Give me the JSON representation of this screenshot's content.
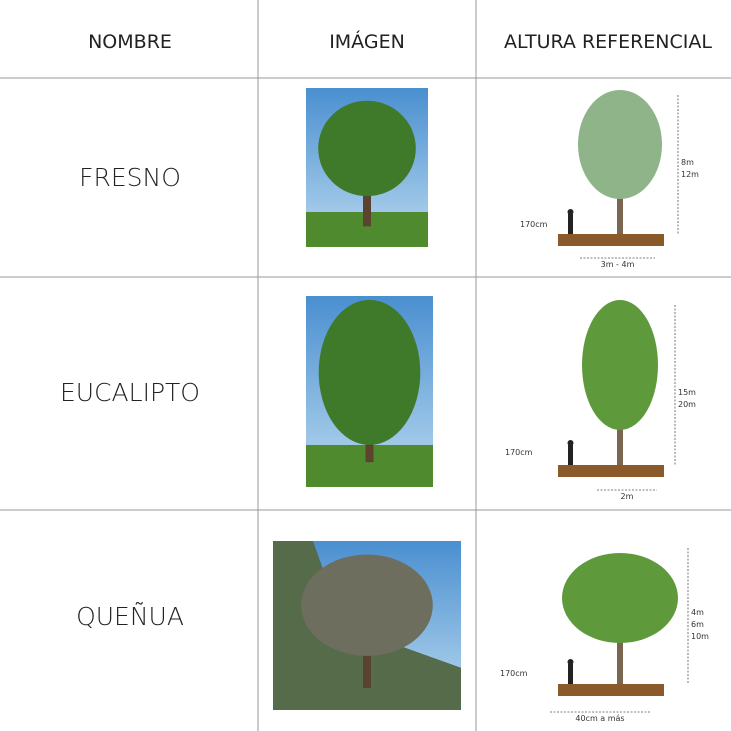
{
  "table": {
    "headers": [
      "NOMBRE",
      "IMÁGEN",
      "ALTURA REFERENCIAL"
    ],
    "rows": [
      {
        "name": "FRESNO",
        "person_height": "170cm",
        "tree_height": [
          "8m",
          "12m"
        ],
        "width": "3m - 4m"
      },
      {
        "name": "EUCALIPTO",
        "person_height": "170cm",
        "tree_height": [
          "15m",
          "20m"
        ],
        "width": "2m"
      },
      {
        "name": "QUEÑUA",
        "person_height": "170cm",
        "tree_height": [
          "4m",
          "6m",
          "10m"
        ],
        "width": "40cm a más"
      }
    ]
  }
}
